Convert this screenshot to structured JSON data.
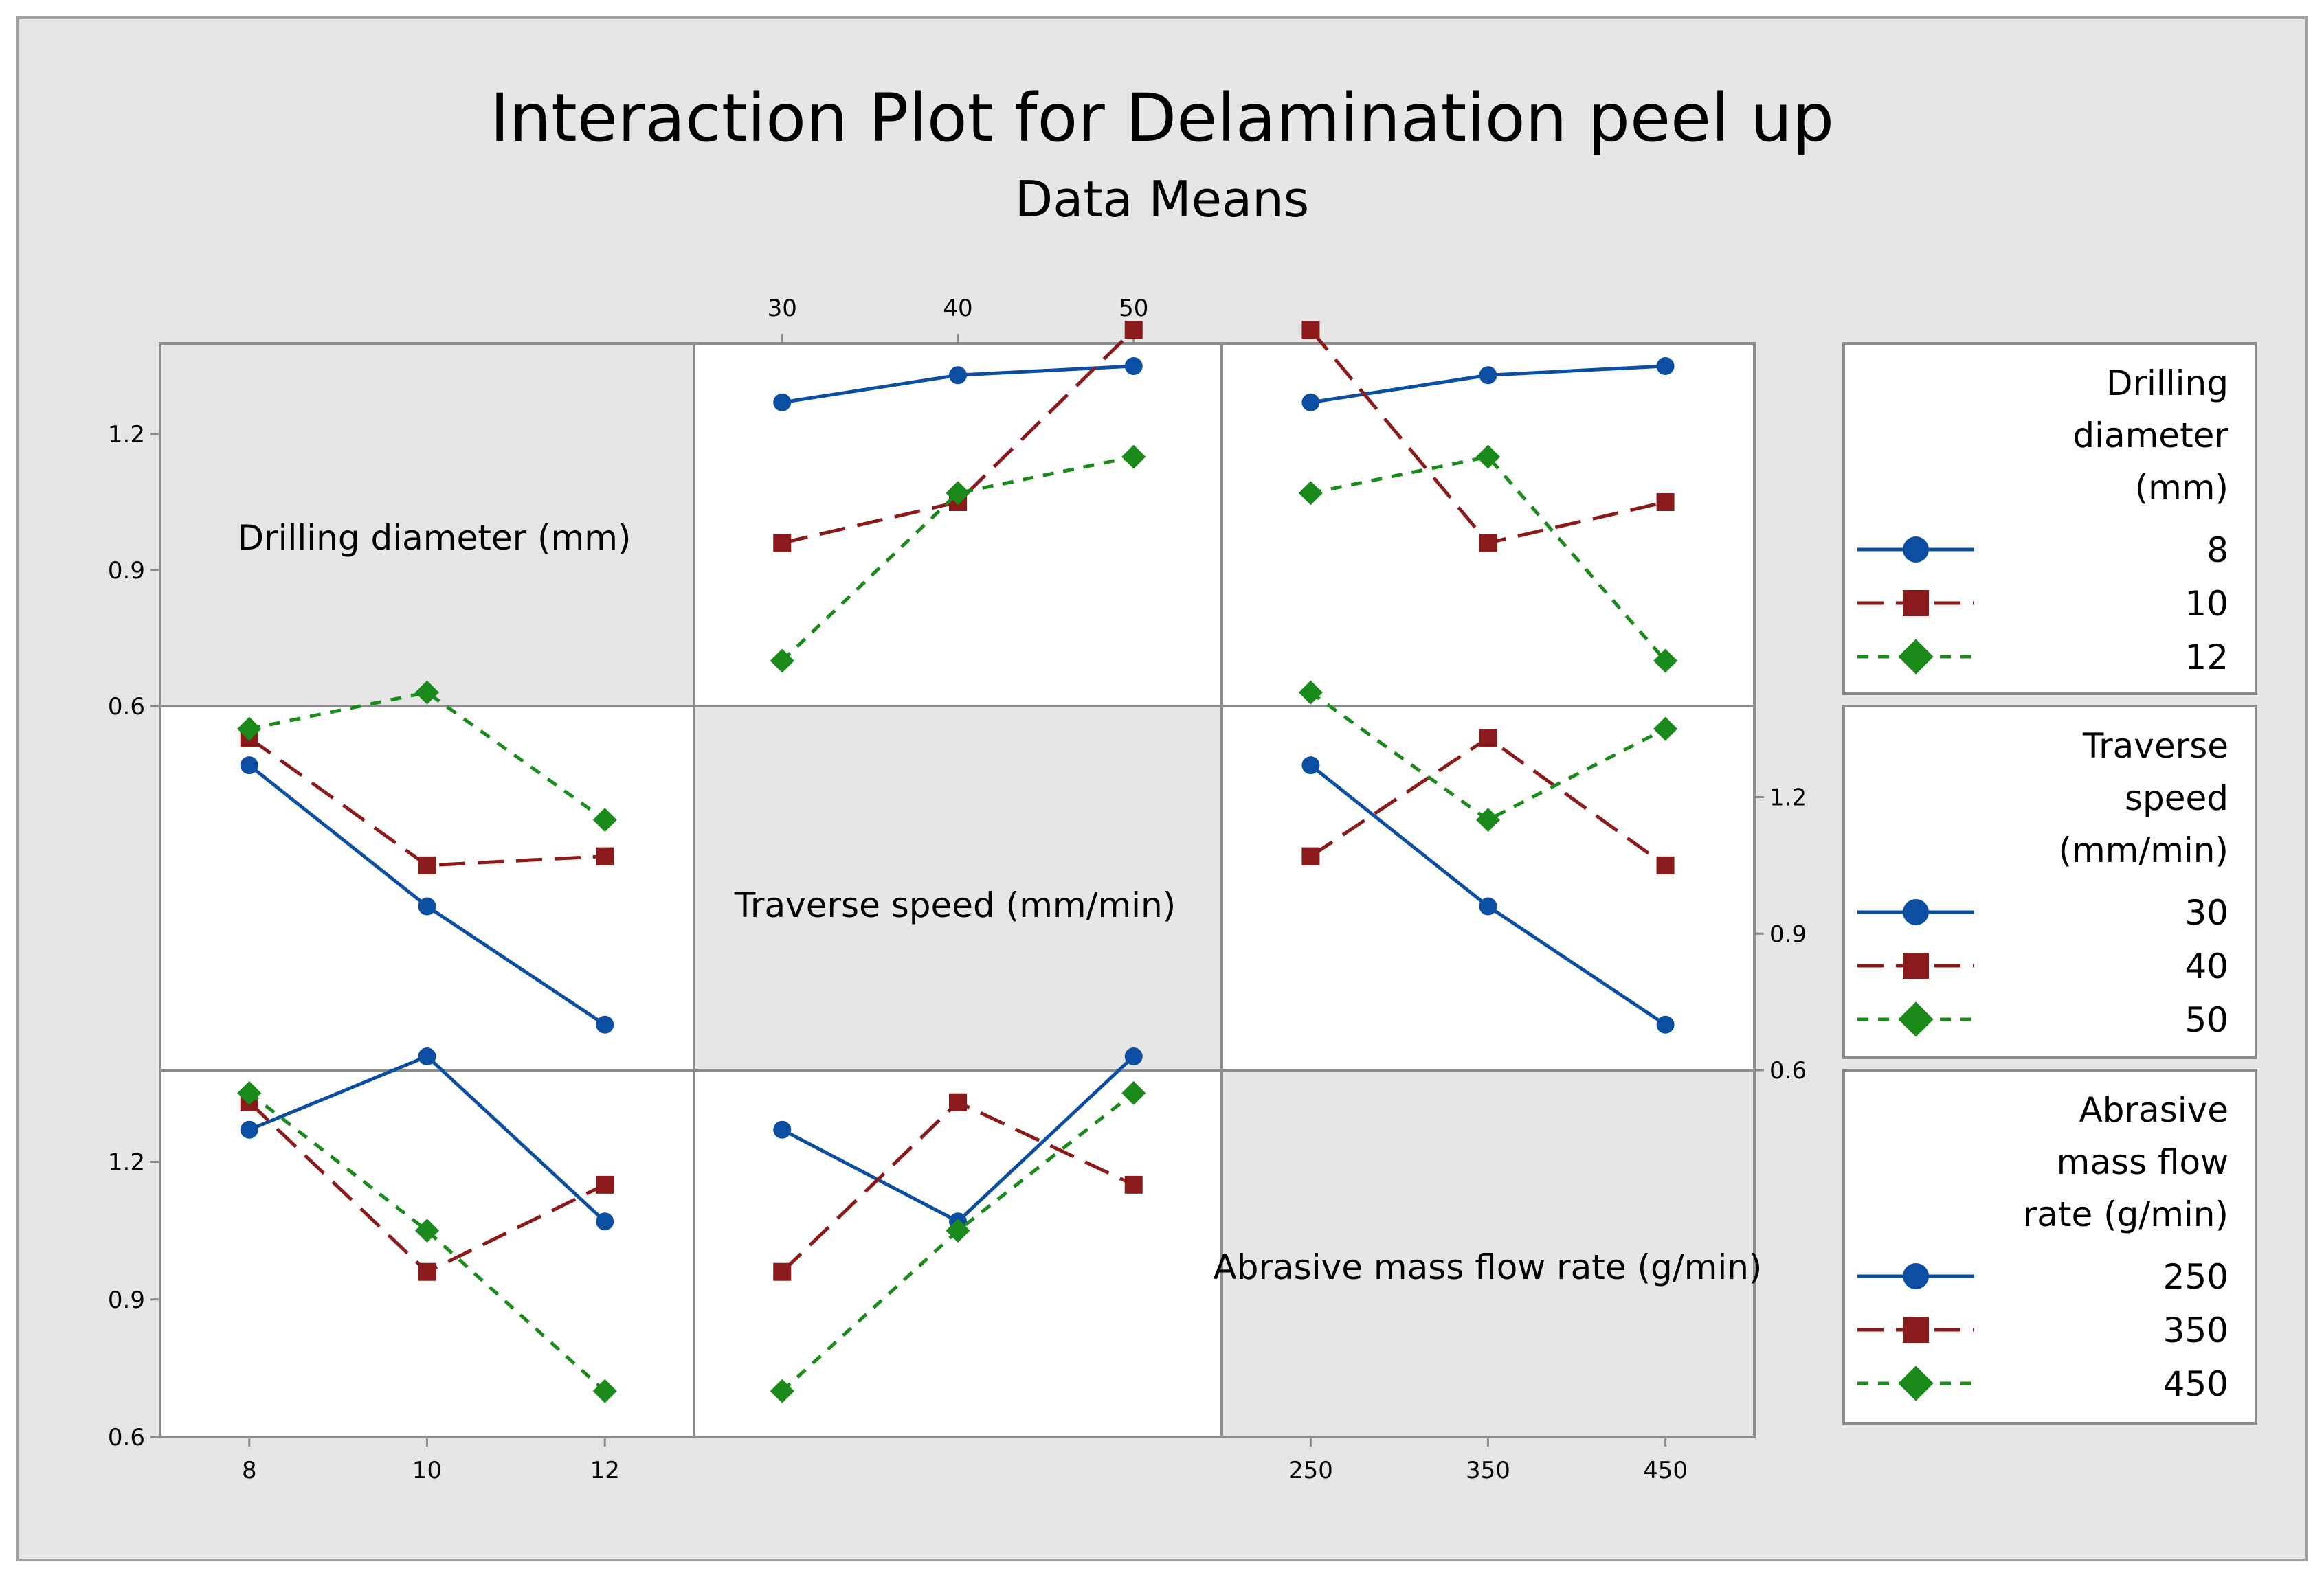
{
  "chart_data": {
    "type": "line",
    "title": "Interaction Plot for Delamination peel up",
    "subtitle": "Data Means",
    "ylim": [
      0.6,
      1.4
    ],
    "y_ticks": [
      "1.2",
      "0.9",
      "0.6"
    ],
    "factors": [
      {
        "name": "Drilling diameter (mm)",
        "legend_title": [
          "Drilling",
          "diameter",
          "(mm)"
        ],
        "levels": [
          "8",
          "10",
          "12"
        ]
      },
      {
        "name": "Traverse speed (mm/min)",
        "legend_title": [
          "Traverse",
          "speed",
          "(mm/min)"
        ],
        "levels": [
          "30",
          "40",
          "50"
        ]
      },
      {
        "name": "Abrasive mass flow rate (g/min)",
        "legend_title": [
          "Abrasive",
          "mass flow",
          "rate (g/min)"
        ],
        "levels": [
          "250",
          "350",
          "450"
        ]
      }
    ],
    "series_styles": [
      {
        "marker": "circle",
        "color": "#0b4ea2",
        "dash": ""
      },
      {
        "marker": "square",
        "color": "#8b1a1a",
        "dash": "38,18"
      },
      {
        "marker": "diamond",
        "color": "#1a8a1a",
        "dash": "16,14"
      }
    ],
    "panels": [
      {
        "row": 0,
        "col": 1,
        "x_factor": "Traverse speed (mm/min)",
        "trace_factor": "Drilling diameter (mm)",
        "series": [
          {
            "name": "8",
            "values": [
              1.27,
              1.33,
              1.35
            ]
          },
          {
            "name": "10",
            "values": [
              0.96,
              1.05,
              1.43
            ]
          },
          {
            "name": "12",
            "values": [
              0.7,
              1.07,
              1.15
            ]
          }
        ]
      },
      {
        "row": 0,
        "col": 2,
        "x_factor": "Abrasive mass flow rate (g/min)",
        "trace_factor": "Drilling diameter (mm)",
        "series": [
          {
            "name": "8",
            "values": [
              1.27,
              1.33,
              1.35
            ]
          },
          {
            "name": "10",
            "values": [
              1.43,
              0.96,
              1.05
            ]
          },
          {
            "name": "12",
            "values": [
              1.07,
              1.15,
              0.7
            ]
          }
        ]
      },
      {
        "row": 1,
        "col": 0,
        "x_factor": "Drilling diameter (mm)",
        "trace_factor": "Traverse speed (mm/min)",
        "series": [
          {
            "name": "30",
            "values": [
              1.27,
              0.96,
              0.7
            ]
          },
          {
            "name": "40",
            "values": [
              1.33,
              1.05,
              1.07
            ]
          },
          {
            "name": "50",
            "values": [
              1.35,
              1.43,
              1.15
            ]
          }
        ]
      },
      {
        "row": 1,
        "col": 2,
        "x_factor": "Abrasive mass flow rate (g/min)",
        "trace_factor": "Traverse speed (mm/min)",
        "series": [
          {
            "name": "30",
            "values": [
              1.27,
              0.96,
              0.7
            ]
          },
          {
            "name": "40",
            "values": [
              1.07,
              1.33,
              1.05
            ]
          },
          {
            "name": "50",
            "values": [
              1.43,
              1.15,
              1.35
            ]
          }
        ]
      },
      {
        "row": 2,
        "col": 0,
        "x_factor": "Drilling diameter (mm)",
        "trace_factor": "Abrasive mass flow rate (g/min)",
        "series": [
          {
            "name": "250",
            "values": [
              1.27,
              1.43,
              1.07
            ]
          },
          {
            "name": "350",
            "values": [
              1.33,
              0.96,
              1.15
            ]
          },
          {
            "name": "450",
            "values": [
              1.35,
              1.05,
              0.7
            ]
          }
        ]
      },
      {
        "row": 2,
        "col": 1,
        "x_factor": "Traverse speed (mm/min)",
        "trace_factor": "Abrasive mass flow rate (g/min)",
        "series": [
          {
            "name": "250",
            "values": [
              1.27,
              1.07,
              1.43
            ]
          },
          {
            "name": "350",
            "values": [
              0.96,
              1.33,
              1.15
            ]
          },
          {
            "name": "450",
            "values": [
              0.7,
              1.05,
              1.35
            ]
          }
        ]
      }
    ],
    "legends": [
      {
        "title": [
          "Drilling",
          "diameter",
          "(mm)"
        ],
        "items": [
          "8",
          "10",
          "12"
        ]
      },
      {
        "title": [
          "Traverse",
          "speed",
          "(mm/min)"
        ],
        "items": [
          "30",
          "40",
          "50"
        ]
      },
      {
        "title": [
          "Abrasive",
          "mass flow",
          "rate (g/min)"
        ],
        "items": [
          "250",
          "350",
          "450"
        ]
      }
    ]
  }
}
